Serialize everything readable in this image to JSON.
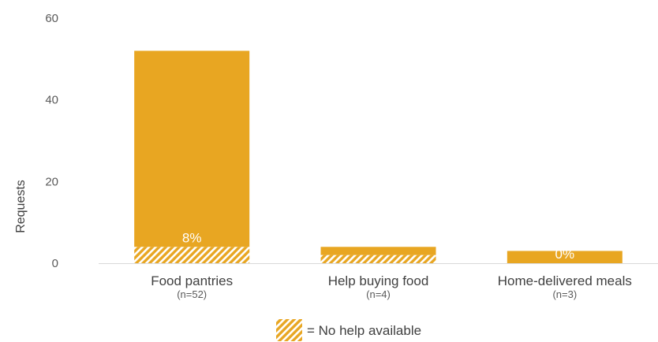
{
  "chart_data": {
    "type": "bar",
    "title": "",
    "xlabel": "",
    "ylabel": "Requests",
    "ylim": [
      0,
      60
    ],
    "yticks": [
      "0",
      "20",
      "40",
      "60"
    ],
    "grid": false,
    "categories": [
      {
        "label": "Food pantries",
        "n_label": "(n=52)"
      },
      {
        "label": "Help buying food",
        "n_label": "(n=4)"
      },
      {
        "label": "Home-delivered meals",
        "n_label": "(n=3)"
      }
    ],
    "series": [
      {
        "name": "No help available",
        "values": [
          4,
          2,
          0
        ]
      },
      {
        "values": [
          48,
          2,
          3
        ]
      }
    ],
    "totals": [
      52,
      4,
      3
    ],
    "data_labels": [
      "8%",
      "",
      "0%"
    ],
    "legend": {
      "text": "= No help available",
      "position": "bottom"
    },
    "colors": {
      "bar": "#e8a622",
      "hatch": "#ffffff",
      "axis": "#d9d9d9"
    }
  }
}
